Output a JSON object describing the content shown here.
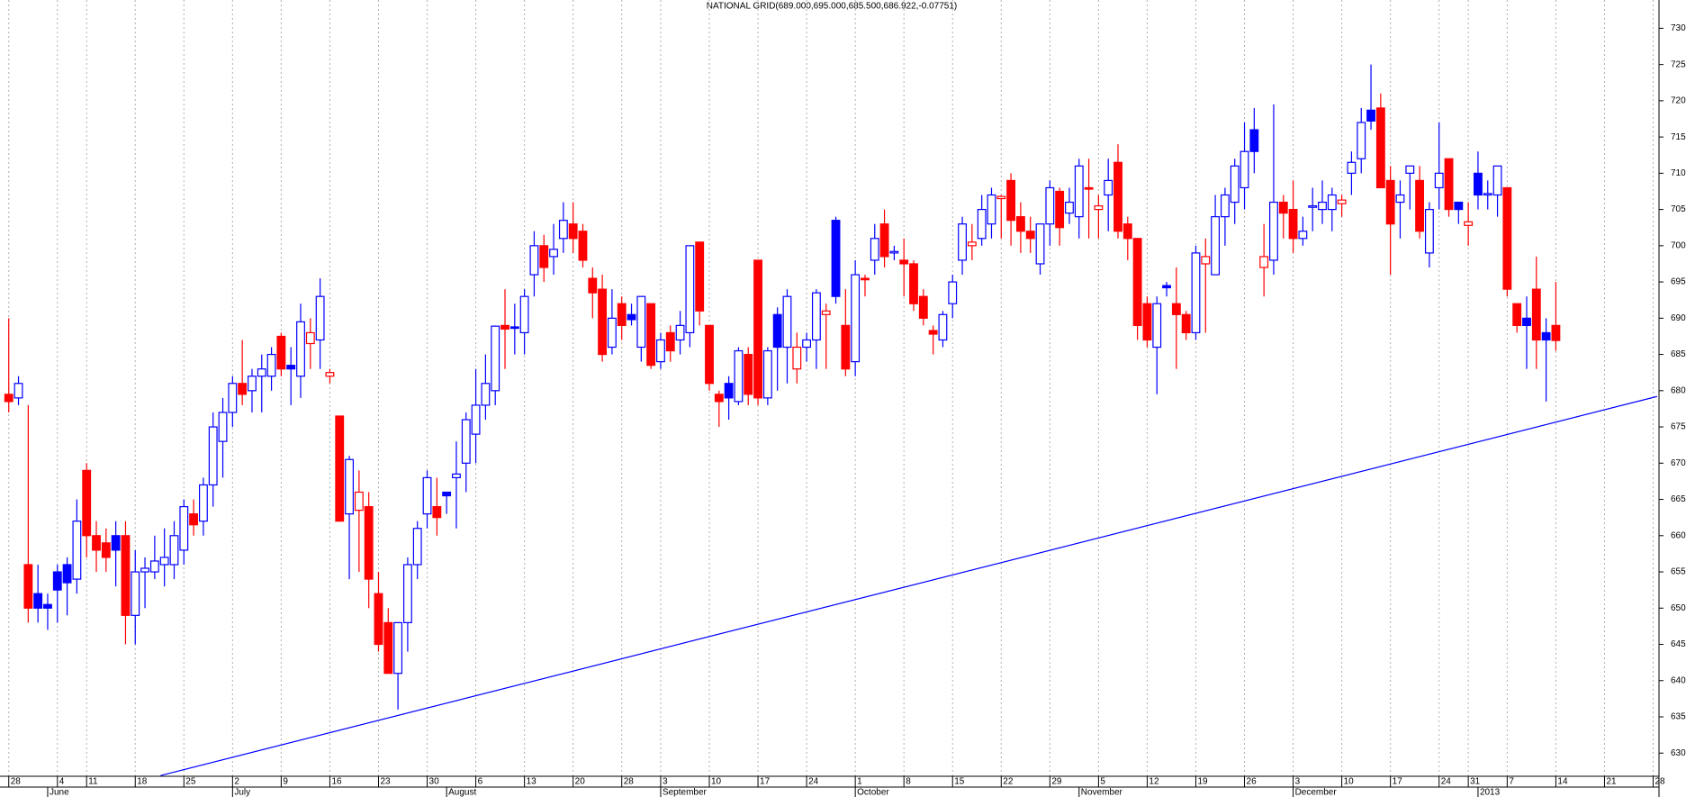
{
  "chart_data": {
    "type": "candlestick",
    "title": "NATIONAL GRID(689.000,695.000,685.500,686.922,-0.07751)",
    "up_color": "#0000ff",
    "down_color": "#ff0000",
    "grid": true,
    "ylim": [
      626.8,
      733.9
    ],
    "yticks": [
      630,
      635,
      640,
      645,
      650,
      655,
      660,
      665,
      670,
      675,
      680,
      685,
      690,
      695,
      700,
      705,
      710,
      715,
      720,
      725,
      730
    ],
    "xlim": [
      -0.9,
      169.6
    ],
    "xticks": [
      {
        "value": 0,
        "label": "28"
      },
      {
        "value": 5,
        "label": "4"
      },
      {
        "value": 8,
        "label": "11"
      },
      {
        "value": 13,
        "label": "18"
      },
      {
        "value": 18,
        "label": "25"
      },
      {
        "value": 23,
        "label": "2"
      },
      {
        "value": 28,
        "label": "9"
      },
      {
        "value": 33,
        "label": "16"
      },
      {
        "value": 38,
        "label": "23"
      },
      {
        "value": 43,
        "label": "30"
      },
      {
        "value": 48,
        "label": "6"
      },
      {
        "value": 53,
        "label": "13"
      },
      {
        "value": 58,
        "label": "20"
      },
      {
        "value": 63,
        "label": "28"
      },
      {
        "value": 67,
        "label": "3"
      },
      {
        "value": 72,
        "label": "10"
      },
      {
        "value": 77,
        "label": "17"
      },
      {
        "value": 82,
        "label": "24"
      },
      {
        "value": 87,
        "label": "1"
      },
      {
        "value": 92,
        "label": "8"
      },
      {
        "value": 97,
        "label": "15"
      },
      {
        "value": 102,
        "label": "22"
      },
      {
        "value": 107,
        "label": "29"
      },
      {
        "value": 112,
        "label": "5"
      },
      {
        "value": 117,
        "label": "12"
      },
      {
        "value": 122,
        "label": "19"
      },
      {
        "value": 127,
        "label": "26"
      },
      {
        "value": 132,
        "label": "3"
      },
      {
        "value": 137,
        "label": "10"
      },
      {
        "value": 142,
        "label": "17"
      },
      {
        "value": 147,
        "label": "24"
      },
      {
        "value": 150,
        "label": "31"
      },
      {
        "value": 154,
        "label": "7"
      },
      {
        "value": 159,
        "label": "14"
      },
      {
        "value": 164,
        "label": "21"
      },
      {
        "value": 169,
        "label": "28"
      }
    ],
    "month_ticks": [
      {
        "value": 4,
        "label": "June"
      },
      {
        "value": 23,
        "label": "July"
      },
      {
        "value": 45,
        "label": "August"
      },
      {
        "value": 67,
        "label": "September"
      },
      {
        "value": 87,
        "label": "October"
      },
      {
        "value": 110,
        "label": "November"
      },
      {
        "value": 132,
        "label": "December"
      },
      {
        "value": 151,
        "label": "2013"
      }
    ],
    "open": [
      679.5,
      679,
      656,
      652,
      650.5,
      655,
      656,
      654,
      669,
      660,
      659,
      660,
      660,
      649,
      655,
      655,
      656,
      656,
      658,
      663,
      662,
      667,
      673,
      677,
      681,
      680,
      682,
      682,
      687.5,
      683.5,
      682,
      686.5,
      687,
      682,
      676.5,
      663,
      663.5,
      664,
      652,
      648,
      641,
      648,
      656,
      663,
      664,
      666,
      668,
      670,
      674,
      678,
      680,
      689,
      688.8,
      688,
      696,
      700,
      698.5,
      701,
      703,
      702,
      695.5,
      694,
      686,
      692,
      690.5,
      686,
      692,
      684,
      688,
      687,
      688,
      700.5,
      689,
      679.5,
      681,
      678.5,
      685,
      698,
      679,
      690.5,
      686,
      683,
      686,
      687,
      690.5,
      703.5,
      689,
      684,
      695.5,
      698,
      703,
      699,
      698,
      697.5,
      693,
      688.3,
      687,
      692,
      698,
      700,
      701,
      703,
      706.5,
      709,
      704,
      702,
      697.5,
      703,
      707.5,
      704.5,
      704,
      708,
      705,
      707,
      711.5,
      703,
      701,
      692,
      686,
      694.5,
      692,
      690.5,
      688,
      697.5,
      696,
      704,
      706,
      708,
      716,
      697,
      698,
      706,
      705,
      701,
      705.3,
      705,
      705,
      705.8,
      710,
      712,
      718.7,
      719,
      709,
      706,
      710,
      709,
      699,
      708,
      712,
      706,
      702.8,
      710,
      707,
      707,
      708,
      692,
      690,
      694,
      688,
      689
    ],
    "high": [
      690,
      682,
      678,
      656,
      652,
      656,
      657,
      665,
      670,
      662,
      661,
      662,
      662,
      658,
      657,
      660,
      661,
      662,
      665,
      665,
      668,
      677,
      679,
      682,
      687,
      683,
      685,
      686,
      688,
      686,
      692,
      690,
      695.5,
      683,
      676.5,
      671,
      669,
      666,
      655,
      650,
      648,
      657,
      662,
      669,
      668,
      666,
      673,
      677,
      683,
      685,
      689,
      694,
      692,
      694,
      702,
      701.5,
      703,
      706,
      706,
      703,
      697,
      696,
      694,
      693,
      692,
      693,
      692,
      688,
      689,
      691,
      700,
      700.5,
      689,
      680,
      682,
      686,
      686,
      698,
      686,
      691.5,
      694,
      688,
      688,
      694,
      692,
      704,
      694,
      698,
      696,
      703,
      705,
      700,
      701,
      698,
      694,
      689,
      691,
      696,
      704,
      703,
      707,
      708,
      707,
      710,
      706,
      704,
      703,
      709,
      708,
      708,
      712,
      712,
      707,
      712,
      714,
      704,
      701,
      693,
      693,
      695,
      697,
      691,
      700,
      701,
      707,
      708,
      712,
      717,
      719,
      703,
      719.5,
      707,
      709,
      704,
      708,
      709,
      708,
      707,
      713,
      719,
      725,
      721,
      711,
      709,
      711,
      711,
      706,
      717,
      712,
      706,
      706,
      713,
      709,
      711,
      708,
      692,
      693,
      698.5,
      690,
      695
    ],
    "low": [
      677,
      678,
      648,
      648,
      647,
      648,
      649,
      652,
      657,
      655,
      655,
      653,
      645,
      645,
      650,
      654,
      653,
      654,
      656,
      660,
      660,
      664,
      668,
      675,
      678,
      677,
      677,
      680,
      682,
      678,
      679,
      683,
      683,
      681,
      662,
      654,
      655,
      650,
      644,
      641,
      636,
      644,
      654,
      661,
      660,
      663,
      661,
      666,
      670,
      676,
      678,
      683,
      685,
      685,
      693,
      695,
      696,
      699,
      699,
      697,
      690,
      684,
      685,
      687,
      689,
      684,
      683,
      683,
      684,
      685,
      686,
      689,
      680,
      675,
      676,
      678,
      678,
      678,
      678,
      680,
      681,
      681,
      684,
      683,
      683,
      692,
      682,
      682,
      693,
      696,
      697,
      698,
      693,
      691,
      689,
      685,
      686,
      690,
      696,
      698,
      700,
      701,
      701,
      700,
      699,
      699,
      696,
      700,
      700,
      703,
      701,
      701,
      701,
      702,
      701,
      698,
      687,
      686,
      679.5,
      693,
      683,
      687,
      687,
      688,
      696,
      700,
      703,
      705,
      710,
      693,
      696,
      701,
      699,
      700,
      702,
      703,
      702,
      704,
      707,
      710,
      716,
      708,
      696,
      701,
      705,
      701,
      697,
      705,
      704,
      703,
      700,
      705,
      705,
      704,
      693,
      688,
      683,
      683,
      678.5,
      685.5
    ],
    "close": [
      678.5,
      681,
      650,
      650,
      650,
      652.5,
      653.5,
      662,
      660,
      658,
      657,
      658,
      649,
      655,
      655.5,
      656.5,
      657,
      660,
      664,
      661.5,
      667,
      675,
      677,
      681,
      679.5,
      682,
      683,
      685,
      683,
      683,
      689.5,
      688,
      693,
      682.5,
      662,
      670.5,
      666,
      654,
      645,
      641,
      648,
      656,
      661,
      668,
      662.5,
      665.5,
      668.5,
      676,
      678,
      681,
      688.9,
      688.5,
      688.6,
      693,
      700,
      697,
      699.5,
      703.5,
      701,
      698,
      693.5,
      685,
      690,
      689,
      689.8,
      693,
      683.5,
      687,
      685.5,
      689,
      700,
      691,
      681,
      678.5,
      679,
      685.5,
      679.5,
      679,
      685.5,
      686,
      693,
      686,
      687,
      693.5,
      691,
      693,
      683,
      696,
      695.3,
      701,
      698.5,
      699.2,
      697.5,
      692,
      690,
      687.8,
      690.5,
      695,
      703,
      700.5,
      705,
      707,
      706.8,
      703.5,
      702,
      701,
      703,
      708,
      702.5,
      706,
      711,
      707.8,
      705.5,
      709,
      702,
      701,
      689,
      687,
      692,
      694.2,
      690.5,
      688,
      699,
      698.5,
      704,
      707,
      711,
      713,
      713,
      698.5,
      706,
      704.5,
      701,
      702,
      705.5,
      706,
      707,
      706.3,
      711.5,
      717,
      717.2,
      708,
      703,
      707,
      711,
      702,
      705,
      710,
      705,
      705,
      703.3,
      707,
      707.2,
      711,
      694,
      689,
      689,
      687,
      687,
      686.922
    ],
    "trendline": {
      "x": [
        15.6,
        169.4
      ],
      "y": [
        626.9,
        679.2
      ],
      "color": "#0000ff"
    }
  }
}
